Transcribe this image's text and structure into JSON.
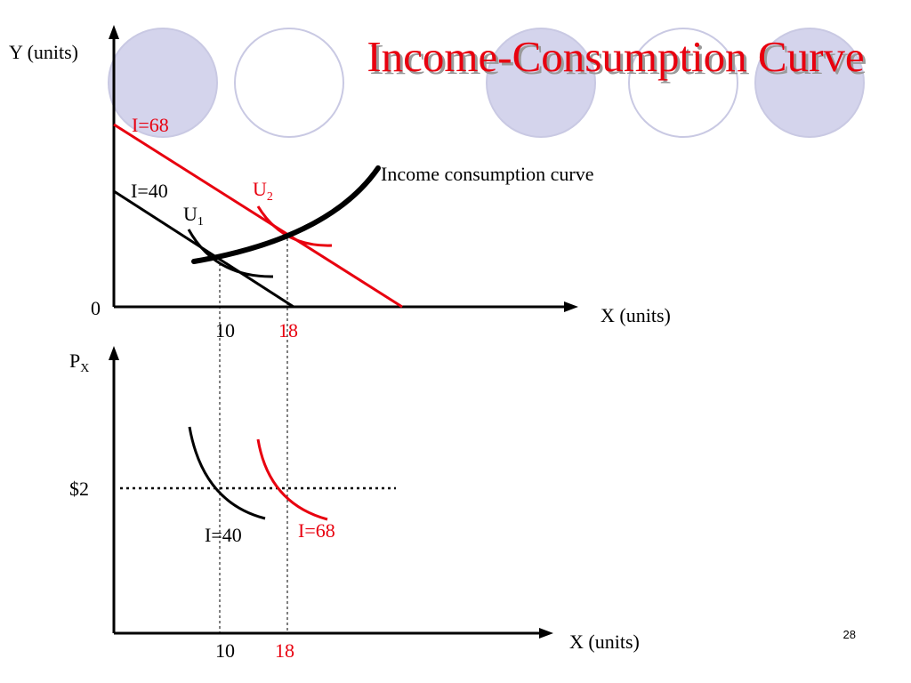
{
  "slide": {
    "title": "Income-Consumption Curve",
    "page_number": "28"
  },
  "colors": {
    "red": "#e8000f",
    "black": "#000000",
    "circle_fill": "#d4d4ec",
    "circle_stroke": "#c9c9e3"
  },
  "top_graph": {
    "y_axis_label": "Y (units)",
    "x_axis_label": "X (units)",
    "origin_label": "0",
    "budget_lines": [
      {
        "label": "I=68",
        "color": "red"
      },
      {
        "label": "I=40",
        "color": "black"
      }
    ],
    "indifference_curves": [
      {
        "label": "U",
        "subscript": "1",
        "color": "black"
      },
      {
        "label": "U",
        "subscript": "2",
        "color": "red"
      }
    ],
    "curve_label": "Income consumption curve",
    "x_ticks": [
      {
        "label": "10",
        "color": "black"
      },
      {
        "label": "18",
        "color": "red"
      }
    ]
  },
  "bottom_graph": {
    "y_axis_label": "P",
    "y_axis_subscript": "X",
    "x_axis_label": "X (units)",
    "price_label": "$2",
    "demand_curves": [
      {
        "label": "I=40",
        "color": "black"
      },
      {
        "label": "I=68",
        "color": "red"
      }
    ],
    "x_ticks": [
      {
        "label": "10",
        "color": "black"
      },
      {
        "label": "18",
        "color": "red"
      }
    ]
  }
}
